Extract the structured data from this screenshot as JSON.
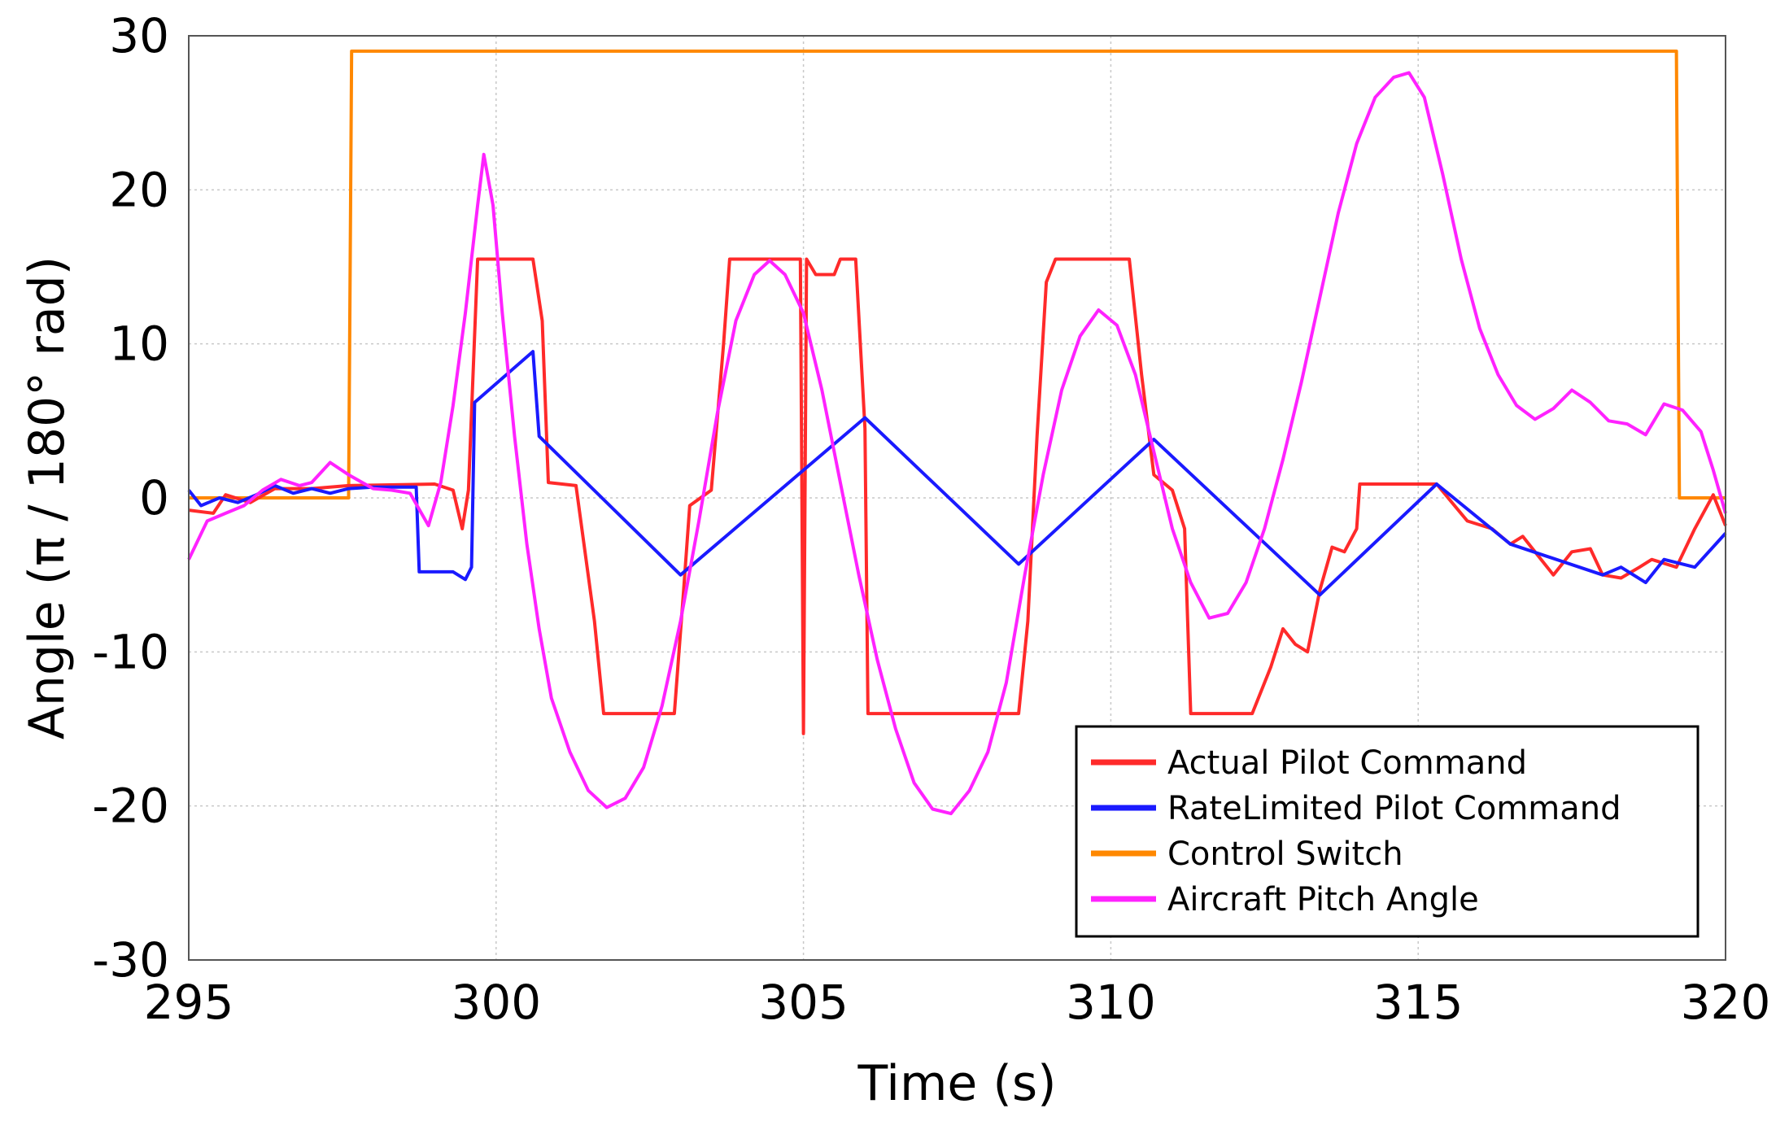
{
  "chart_data": {
    "type": "line",
    "xlabel": "Time (s)",
    "ylabel": "Angle (π / 180° rad)",
    "xlim": [
      295,
      320
    ],
    "ylim": [
      -30,
      30
    ],
    "x_ticks": [
      "295",
      "300",
      "305",
      "310",
      "315",
      "320"
    ],
    "y_ticks": [
      "30",
      "20",
      "10",
      "0",
      "-10",
      "-20",
      "-30"
    ],
    "grid": true,
    "legend_position": "bottom-right",
    "series": [
      {
        "name": "Actual Pilot Command",
        "color": "#ff2a2a",
        "points": [
          [
            295,
            -0.8
          ],
          [
            295.4,
            -1.0
          ],
          [
            295.6,
            0.2
          ],
          [
            296.0,
            -0.3
          ],
          [
            296.4,
            0.6
          ],
          [
            297.0,
            0.6
          ],
          [
            297.6,
            0.8
          ],
          [
            299.0,
            0.9
          ],
          [
            299.3,
            0.5
          ],
          [
            299.45,
            -2.0
          ],
          [
            299.55,
            0.5
          ],
          [
            299.7,
            15.5
          ],
          [
            300.6,
            15.5
          ],
          [
            300.75,
            11.5
          ],
          [
            300.85,
            1.0
          ],
          [
            301.3,
            0.8
          ],
          [
            301.6,
            -8.0
          ],
          [
            301.75,
            -14.0
          ],
          [
            302.9,
            -14.0
          ],
          [
            303.05,
            -6.0
          ],
          [
            303.15,
            -0.5
          ],
          [
            303.5,
            0.5
          ],
          [
            303.7,
            10.0
          ],
          [
            303.8,
            15.5
          ],
          [
            304.95,
            15.5
          ],
          [
            305.0,
            -15.3
          ],
          [
            305.05,
            15.5
          ],
          [
            305.2,
            14.5
          ],
          [
            305.5,
            14.5
          ],
          [
            305.6,
            15.5
          ],
          [
            305.85,
            15.5
          ],
          [
            306.0,
            4.5
          ],
          [
            306.05,
            -14.0
          ],
          [
            308.5,
            -14.0
          ],
          [
            308.65,
            -8.0
          ],
          [
            308.8,
            4.0
          ],
          [
            308.95,
            14.0
          ],
          [
            309.1,
            15.5
          ],
          [
            310.3,
            15.5
          ],
          [
            310.5,
            8.0
          ],
          [
            310.7,
            1.5
          ],
          [
            311.0,
            0.5
          ],
          [
            311.2,
            -2.0
          ],
          [
            311.3,
            -14.0
          ],
          [
            312.3,
            -14.0
          ],
          [
            312.6,
            -11.0
          ],
          [
            312.8,
            -8.5
          ],
          [
            313.0,
            -9.5
          ],
          [
            313.2,
            -10.0
          ],
          [
            313.4,
            -6.0
          ],
          [
            313.6,
            -3.2
          ],
          [
            313.8,
            -3.5
          ],
          [
            314.0,
            -2.0
          ],
          [
            314.05,
            0.9
          ],
          [
            315.3,
            0.9
          ],
          [
            315.8,
            -1.5
          ],
          [
            316.2,
            -2.0
          ],
          [
            316.5,
            -3.0
          ],
          [
            316.7,
            -2.5
          ],
          [
            317.0,
            -4.0
          ],
          [
            317.2,
            -5.0
          ],
          [
            317.5,
            -3.5
          ],
          [
            317.8,
            -3.3
          ],
          [
            318.0,
            -5.0
          ],
          [
            318.3,
            -5.2
          ],
          [
            318.6,
            -4.5
          ],
          [
            318.8,
            -4.0
          ],
          [
            319.2,
            -4.5
          ],
          [
            319.5,
            -2.0
          ],
          [
            319.8,
            0.2
          ],
          [
            320.0,
            -1.8
          ]
        ]
      },
      {
        "name": "RateLimited Pilot Command",
        "color": "#1a1aff",
        "points": [
          [
            295,
            0.5
          ],
          [
            295.2,
            -0.5
          ],
          [
            295.5,
            0.0
          ],
          [
            295.8,
            -0.3
          ],
          [
            296.1,
            0.2
          ],
          [
            296.4,
            0.8
          ],
          [
            296.7,
            0.3
          ],
          [
            297.0,
            0.6
          ],
          [
            297.3,
            0.3
          ],
          [
            297.6,
            0.6
          ],
          [
            298.0,
            0.7
          ],
          [
            298.7,
            0.7
          ],
          [
            298.75,
            -4.8
          ],
          [
            299.3,
            -4.8
          ],
          [
            299.5,
            -5.3
          ],
          [
            299.6,
            -4.5
          ],
          [
            299.65,
            6.2
          ],
          [
            300.6,
            9.5
          ],
          [
            300.7,
            4.0
          ],
          [
            303.0,
            -5.0
          ],
          [
            306.0,
            5.2
          ],
          [
            308.5,
            -4.3
          ],
          [
            310.7,
            3.8
          ],
          [
            313.4,
            -6.3
          ],
          [
            315.3,
            0.9
          ],
          [
            316.5,
            -3.0
          ],
          [
            318.0,
            -5.0
          ],
          [
            318.3,
            -4.5
          ],
          [
            318.7,
            -5.5
          ],
          [
            319.0,
            -4.0
          ],
          [
            319.5,
            -4.5
          ],
          [
            320.0,
            -2.3
          ]
        ]
      },
      {
        "name": "Control Switch",
        "color": "#ff8800",
        "points": [
          [
            295,
            0
          ],
          [
            297.6,
            0
          ],
          [
            297.65,
            29
          ],
          [
            319.2,
            29
          ],
          [
            319.25,
            0
          ],
          [
            320,
            0
          ]
        ]
      },
      {
        "name": "Aircraft Pitch Angle",
        "color": "#ff22ff",
        "points": [
          [
            295,
            -4.0
          ],
          [
            295.3,
            -1.5
          ],
          [
            295.6,
            -1.0
          ],
          [
            295.9,
            -0.5
          ],
          [
            296.2,
            0.5
          ],
          [
            296.5,
            1.2
          ],
          [
            296.8,
            0.8
          ],
          [
            297.0,
            1.0
          ],
          [
            297.3,
            2.3
          ],
          [
            297.6,
            1.5
          ],
          [
            298.0,
            0.6
          ],
          [
            298.3,
            0.5
          ],
          [
            298.6,
            0.3
          ],
          [
            298.9,
            -1.8
          ],
          [
            299.1,
            1.0
          ],
          [
            299.3,
            6.0
          ],
          [
            299.5,
            12.0
          ],
          [
            299.7,
            19.0
          ],
          [
            299.8,
            22.3
          ],
          [
            299.95,
            19.0
          ],
          [
            300.1,
            12.0
          ],
          [
            300.3,
            4.0
          ],
          [
            300.5,
            -3.0
          ],
          [
            300.7,
            -8.5
          ],
          [
            300.9,
            -13.0
          ],
          [
            301.2,
            -16.5
          ],
          [
            301.5,
            -19.0
          ],
          [
            301.8,
            -20.1
          ],
          [
            302.1,
            -19.5
          ],
          [
            302.4,
            -17.5
          ],
          [
            302.7,
            -13.5
          ],
          [
            303.0,
            -8.0
          ],
          [
            303.3,
            -1.5
          ],
          [
            303.6,
            5.5
          ],
          [
            303.9,
            11.5
          ],
          [
            304.2,
            14.5
          ],
          [
            304.45,
            15.4
          ],
          [
            304.7,
            14.5
          ],
          [
            305.0,
            12.0
          ],
          [
            305.3,
            7.0
          ],
          [
            305.6,
            1.0
          ],
          [
            305.9,
            -5.0
          ],
          [
            306.2,
            -10.5
          ],
          [
            306.5,
            -15.0
          ],
          [
            306.8,
            -18.5
          ],
          [
            307.1,
            -20.2
          ],
          [
            307.4,
            -20.5
          ],
          [
            307.7,
            -19.0
          ],
          [
            308.0,
            -16.5
          ],
          [
            308.3,
            -12.0
          ],
          [
            308.6,
            -5.0
          ],
          [
            308.9,
            1.5
          ],
          [
            309.2,
            7.0
          ],
          [
            309.5,
            10.5
          ],
          [
            309.8,
            12.2
          ],
          [
            310.1,
            11.2
          ],
          [
            310.4,
            8.0
          ],
          [
            310.7,
            3.0
          ],
          [
            311.0,
            -2.0
          ],
          [
            311.3,
            -5.5
          ],
          [
            311.6,
            -7.8
          ],
          [
            311.9,
            -7.5
          ],
          [
            312.2,
            -5.5
          ],
          [
            312.5,
            -2.0
          ],
          [
            312.8,
            2.5
          ],
          [
            313.1,
            7.5
          ],
          [
            313.4,
            13.0
          ],
          [
            313.7,
            18.5
          ],
          [
            314.0,
            23.0
          ],
          [
            314.3,
            26.0
          ],
          [
            314.6,
            27.3
          ],
          [
            314.85,
            27.6
          ],
          [
            315.1,
            26.0
          ],
          [
            315.4,
            21.0
          ],
          [
            315.7,
            15.5
          ],
          [
            316.0,
            11.0
          ],
          [
            316.3,
            8.0
          ],
          [
            316.6,
            6.0
          ],
          [
            316.9,
            5.1
          ],
          [
            317.2,
            5.8
          ],
          [
            317.5,
            7.0
          ],
          [
            317.8,
            6.2
          ],
          [
            318.1,
            5.0
          ],
          [
            318.4,
            4.8
          ],
          [
            318.7,
            4.1
          ],
          [
            319.0,
            6.1
          ],
          [
            319.3,
            5.7
          ],
          [
            319.6,
            4.3
          ],
          [
            319.8,
            1.8
          ],
          [
            320.0,
            -1.0
          ]
        ]
      }
    ]
  }
}
